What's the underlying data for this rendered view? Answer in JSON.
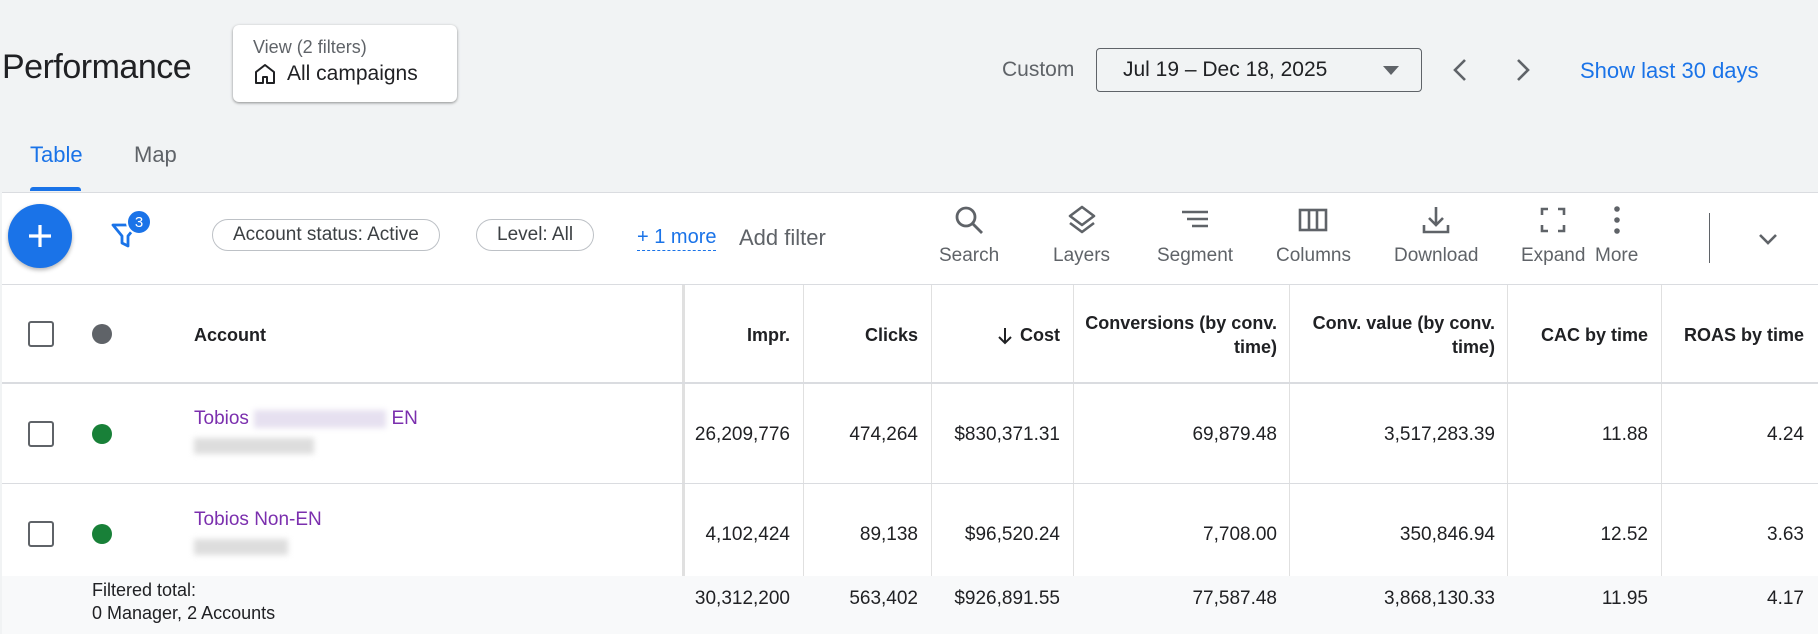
{
  "header": {
    "title": "Performance",
    "view_label": "View (2 filters)",
    "view_value": "All campaigns",
    "custom_label": "Custom",
    "date_range": "Jul 19 – Dec 18, 2025",
    "show_last": "Show last 30 days"
  },
  "tabs": [
    {
      "label": "Table"
    },
    {
      "label": "Map"
    }
  ],
  "toolbar": {
    "filter_count": "3",
    "chips": [
      "Account status: Active",
      "Level: All"
    ],
    "more_link": "+ 1 more",
    "add_filter": "Add filter",
    "tools": [
      "Search",
      "Layers",
      "Segment",
      "Columns",
      "Download",
      "Expand",
      "More"
    ]
  },
  "table": {
    "columns": {
      "account": "Account",
      "impr": "Impr.",
      "clicks": "Clicks",
      "cost": "Cost",
      "conversions_l1": "Conversions (by conv.",
      "conversions_l2": "time)",
      "conv_value_l1": "Conv. value (by conv.",
      "conv_value_l2": "time)",
      "cac": "CAC by time",
      "roas": "ROAS by time"
    },
    "rows": [
      {
        "account_prefix": "Tobios",
        "account_suffix": "EN",
        "impr": "26,209,776",
        "clicks": "474,264",
        "cost": "$830,371.31",
        "conversions": "69,879.48",
        "conv_value": "3,517,283.39",
        "cac": "11.88",
        "roas": "4.24"
      },
      {
        "account_prefix": "Tobios Non-EN",
        "account_suffix": "",
        "impr": "4,102,424",
        "clicks": "89,138",
        "cost": "$96,520.24",
        "conversions": "7,708.00",
        "conv_value": "350,846.94",
        "cac": "12.52",
        "roas": "3.63"
      }
    ],
    "total": {
      "label_l1": "Filtered total:",
      "label_l2": "0 Manager, 2 Accounts",
      "impr": "30,312,200",
      "clicks": "563,402",
      "cost": "$926,891.55",
      "conversions": "77,587.48",
      "conv_value": "3,868,130.33",
      "cac": "11.95",
      "roas": "4.17"
    }
  },
  "colors": {
    "accent": "#1a73e8",
    "status_enabled": "#188038",
    "status_header": "#5f6368",
    "account_link": "#7b2fae"
  }
}
